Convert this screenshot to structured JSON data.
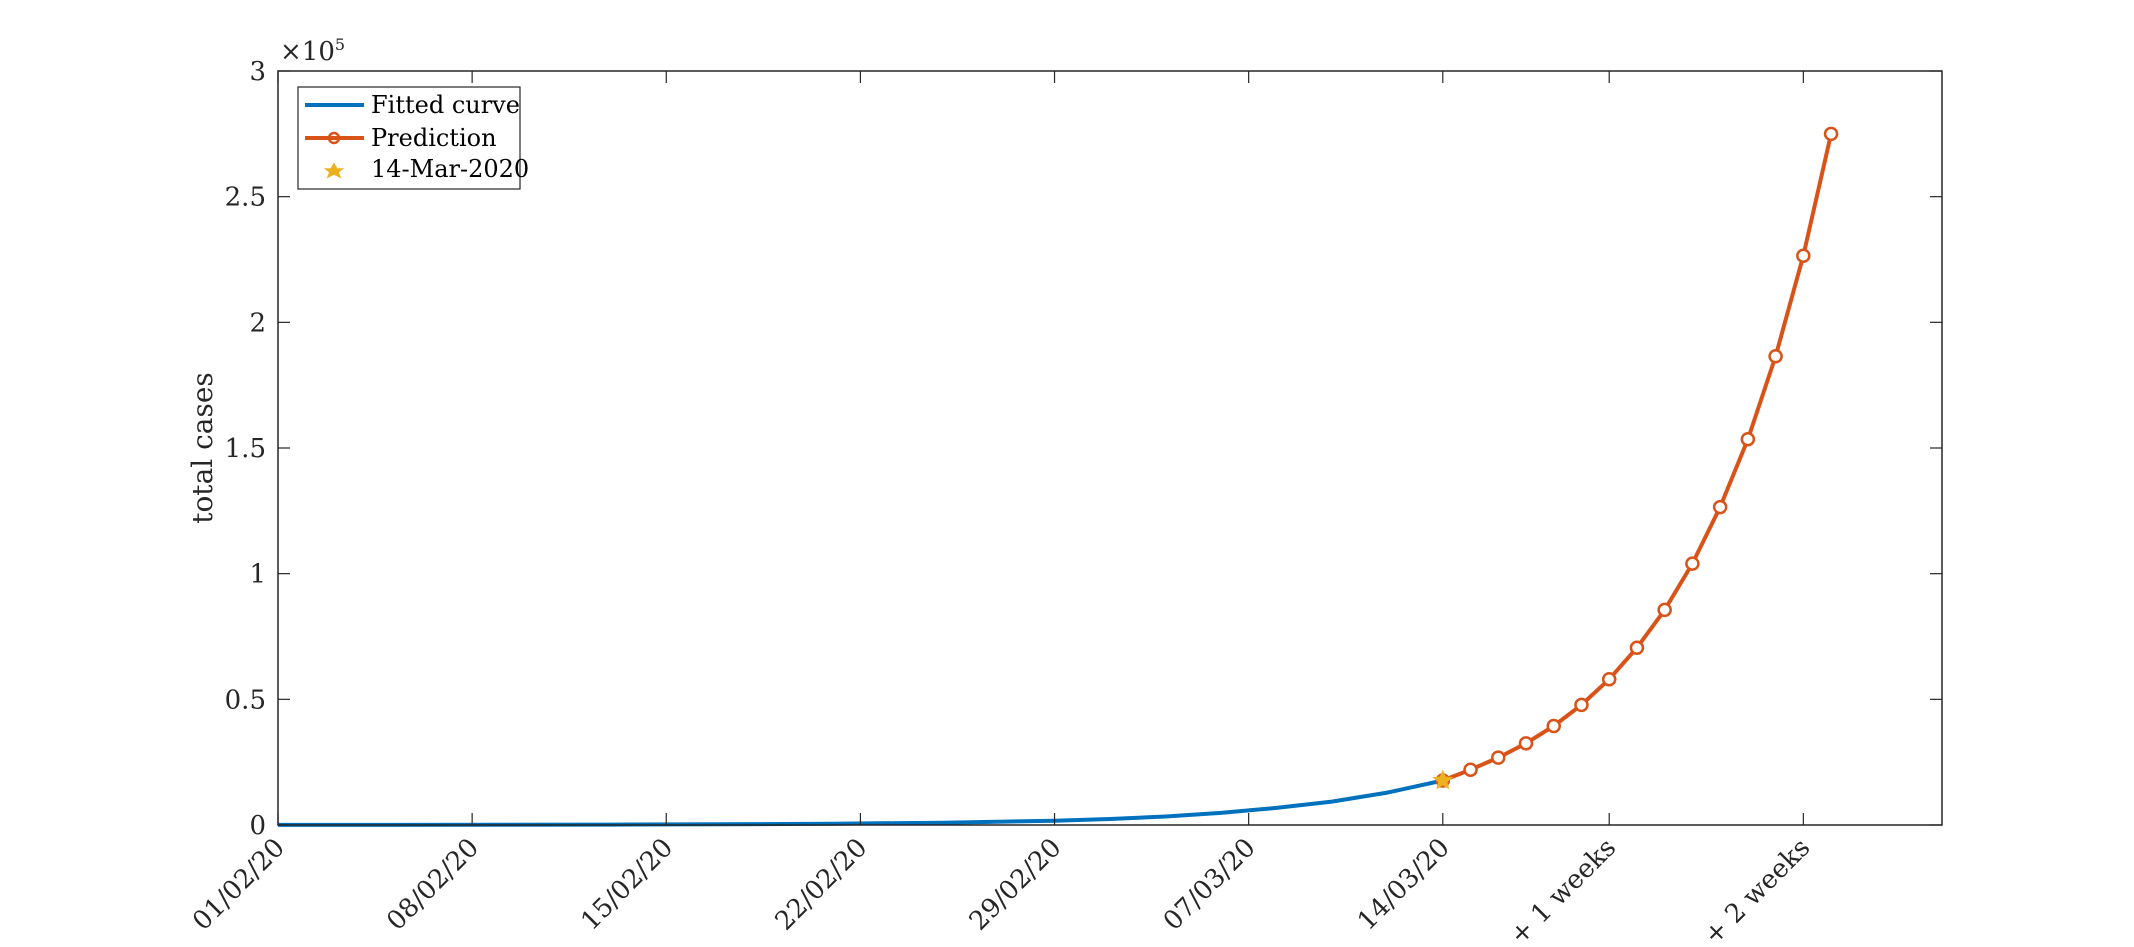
{
  "chart_data": {
    "type": "line",
    "ylabel": "total cases",
    "y_exponent_label": "×10",
    "y_exponent_power": "5",
    "ylim": [
      0,
      300000
    ],
    "y_ticks": [
      0,
      50000,
      100000,
      150000,
      200000,
      250000,
      300000
    ],
    "y_tick_labels": [
      "0",
      "0.5",
      "1",
      "1.5",
      "2",
      "2.5",
      "3"
    ],
    "x_tick_labels": [
      "01/02/20",
      "08/02/20",
      "15/02/20",
      "22/02/20",
      "29/02/20",
      "07/03/20",
      "14/03/20",
      "+ 1 weeks",
      "+ 2 weeks"
    ],
    "x_tick_dates": [
      "2020-02-01",
      "2020-02-08",
      "2020-02-15",
      "2020-02-22",
      "2020-02-29",
      "2020-03-07",
      "2020-03-14",
      "2020-03-20",
      "2020-03-27"
    ],
    "xlim": [
      "2020-02-01",
      "2020-04-01"
    ],
    "series": [
      {
        "name": "Fitted curve",
        "color": "#0072BD",
        "x": [
          "2020-02-01",
          "2020-02-05",
          "2020-02-09",
          "2020-02-13",
          "2020-02-17",
          "2020-02-21",
          "2020-02-25",
          "2020-02-29",
          "2020-03-02",
          "2020-03-04",
          "2020-03-06",
          "2020-03-08",
          "2020-03-10",
          "2020-03-12",
          "2020-03-14"
        ],
        "values": [
          30,
          50,
          90,
          160,
          280,
          500,
          900,
          1700,
          2400,
          3400,
          4800,
          6800,
          9300,
          12900,
          17700
        ]
      },
      {
        "name": "Prediction",
        "color": "#D95319",
        "marker": "circle",
        "x": [
          "2020-03-14",
          "2020-03-15",
          "2020-03-16",
          "2020-03-17",
          "2020-03-18",
          "2020-03-19",
          "2020-03-20",
          "2020-03-21",
          "2020-03-22",
          "2020-03-23",
          "2020-03-24",
          "2020-03-25",
          "2020-03-26",
          "2020-03-27",
          "2020-03-28"
        ],
        "values": [
          17700,
          22000,
          26800,
          32500,
          39400,
          47800,
          58000,
          70500,
          85600,
          104000,
          126500,
          153500,
          186500,
          226500,
          275000
        ]
      },
      {
        "name": "14-Mar-2020",
        "color": "#EDB120",
        "marker": "star",
        "x": [
          "2020-03-14"
        ],
        "values": [
          17700
        ]
      }
    ],
    "legend_position": "top-left",
    "grid": false
  }
}
